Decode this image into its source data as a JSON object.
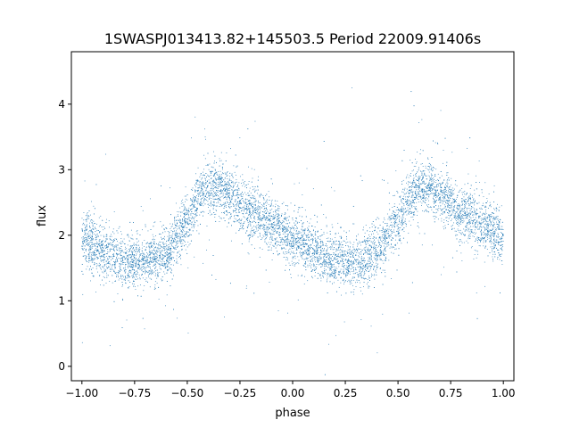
{
  "chart_data": {
    "type": "scatter",
    "title": "1SWASPJ013413.82+145503.5 Period 22009.91406s",
    "xlabel": "phase",
    "ylabel": "flux",
    "xlim": [
      -1.05,
      1.05
    ],
    "ylim": [
      -0.22,
      4.8
    ],
    "xticks": [
      -1.0,
      -0.75,
      -0.5,
      -0.25,
      0.0,
      0.25,
      0.5,
      0.75,
      1.0
    ],
    "xtick_labels": [
      "−1.00",
      "−0.75",
      "−0.50",
      "−0.25",
      "0.00",
      "0.25",
      "0.50",
      "0.75",
      "1.00"
    ],
    "yticks": [
      0,
      1,
      2,
      3,
      4
    ],
    "ytick_labels": [
      "0",
      "1",
      "2",
      "3",
      "4"
    ],
    "grid": false,
    "marker_color": "#1f77b4",
    "series": [
      {
        "trend_phase": [
          -1.0,
          -0.9,
          -0.8,
          -0.7,
          -0.6,
          -0.5,
          -0.45,
          -0.4,
          -0.35,
          -0.3,
          -0.2,
          -0.1,
          0.0,
          0.1,
          0.2,
          0.3,
          0.4,
          0.5,
          0.55,
          0.6,
          0.65,
          0.7,
          0.8,
          0.9,
          1.0
        ],
        "trend_flux": [
          1.95,
          1.75,
          1.62,
          1.6,
          1.75,
          2.2,
          2.55,
          2.75,
          2.72,
          2.6,
          2.35,
          2.15,
          1.97,
          1.75,
          1.62,
          1.6,
          1.75,
          2.2,
          2.55,
          2.75,
          2.72,
          2.6,
          2.35,
          2.15,
          1.97
        ],
        "scatter_sigma": 0.2,
        "point_count": 9000
      }
    ]
  }
}
